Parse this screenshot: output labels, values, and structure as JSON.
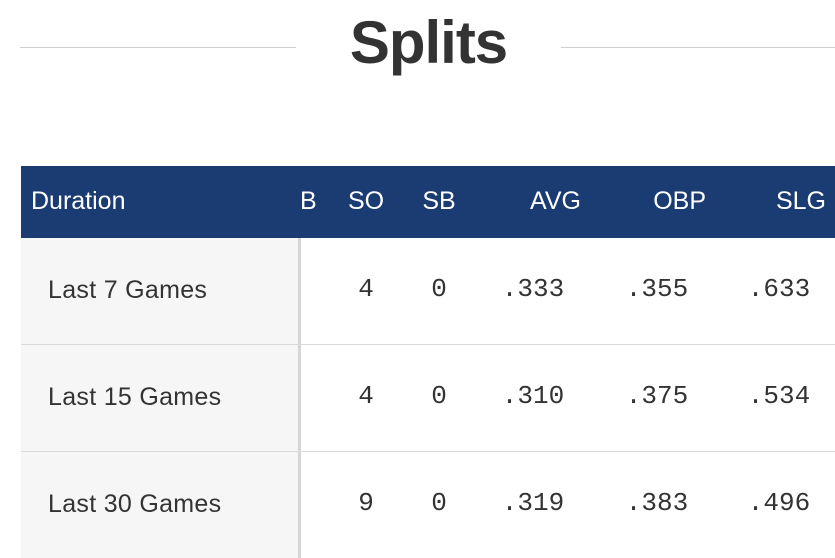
{
  "section": {
    "title": "Splits"
  },
  "table": {
    "columns": {
      "duration": "Duration",
      "cut": "B",
      "so": "SO",
      "sb": "SB",
      "avg": "AVG",
      "obp": "OBP",
      "slg": "SLG"
    },
    "rows": [
      {
        "duration": "Last 7 Games",
        "so": "4",
        "sb": "0",
        "avg": ".333",
        "obp": ".355",
        "slg": ".633"
      },
      {
        "duration": "Last 15 Games",
        "so": "4",
        "sb": "0",
        "avg": ".310",
        "obp": ".375",
        "slg": ".534"
      },
      {
        "duration": "Last 30 Games",
        "so": "9",
        "sb": "0",
        "avg": ".319",
        "obp": ".383",
        "slg": ".496"
      }
    ]
  },
  "colors": {
    "header_bg": "#1b3c72",
    "header_text": "#ffffff",
    "name_col_bg": "#f6f6f6",
    "text": "#333333"
  }
}
